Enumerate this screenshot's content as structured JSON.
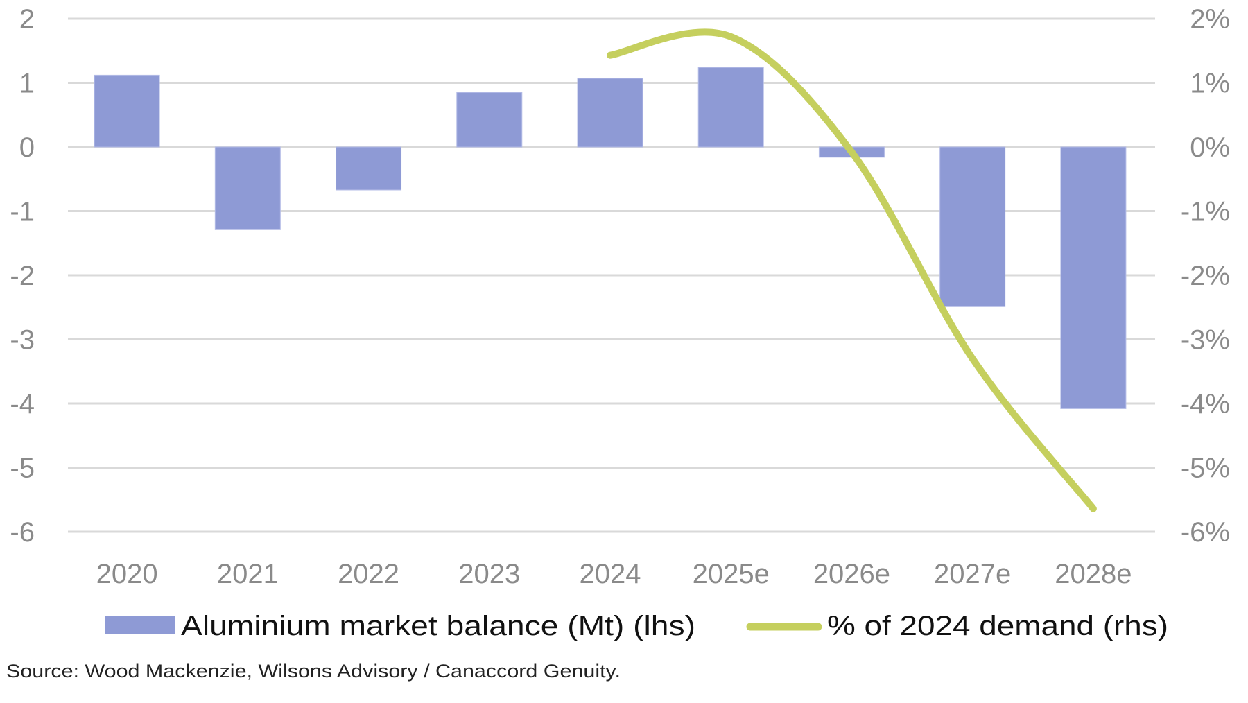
{
  "chart_data": {
    "type": "bar+line",
    "title": "",
    "categories": [
      "2020",
      "2021",
      "2022",
      "2023",
      "2024",
      "2025e",
      "2026e",
      "2027e",
      "2028e"
    ],
    "series": [
      {
        "name": "Aluminium market balance (Mt) (lhs)",
        "type": "bar",
        "axis": "left",
        "color": "#8E9AD5",
        "values": [
          1.12,
          -1.29,
          -0.67,
          0.85,
          1.07,
          1.24,
          -0.16,
          -2.49,
          -4.08
        ]
      },
      {
        "name": "% of 2024 demand (rhs)",
        "type": "line",
        "axis": "right",
        "smooth": true,
        "color": "#C5CF5E",
        "values": [
          null,
          null,
          null,
          null,
          1.43,
          1.72,
          -0.08,
          -3.3,
          -5.64
        ]
      }
    ],
    "left_axis": {
      "label": "",
      "ylim": [
        -6,
        2
      ],
      "ticks": [
        2,
        1,
        0,
        -1,
        -2,
        -3,
        -4,
        -5,
        -6
      ],
      "tick_labels": [
        "2",
        "1",
        "0",
        "-1",
        "-2",
        "-3",
        "-4",
        "-5",
        "-6"
      ]
    },
    "right_axis": {
      "label": "",
      "ylim": [
        -6,
        2
      ],
      "ticks": [
        2,
        1,
        0,
        -1,
        -2,
        -3,
        -4,
        -5,
        -6
      ],
      "tick_labels": [
        "2%",
        "1%",
        "0%",
        "-1%",
        "-2%",
        "-3%",
        "-4%",
        "-5%",
        "-6%"
      ]
    },
    "grid": true,
    "gridline_color": "#D9D9D9",
    "legend": {
      "placement": "bottom",
      "entries": [
        {
          "label": "Aluminium market balance (Mt) (lhs)",
          "marker": "bar",
          "color": "#8E9AD5"
        },
        {
          "label": "% of 2024 demand (rhs)",
          "marker": "line",
          "color": "#C5CF5E"
        }
      ]
    }
  },
  "source_note": "Source: Wood Mackenzie, Wilsons Advisory / Canaccord Genuity."
}
